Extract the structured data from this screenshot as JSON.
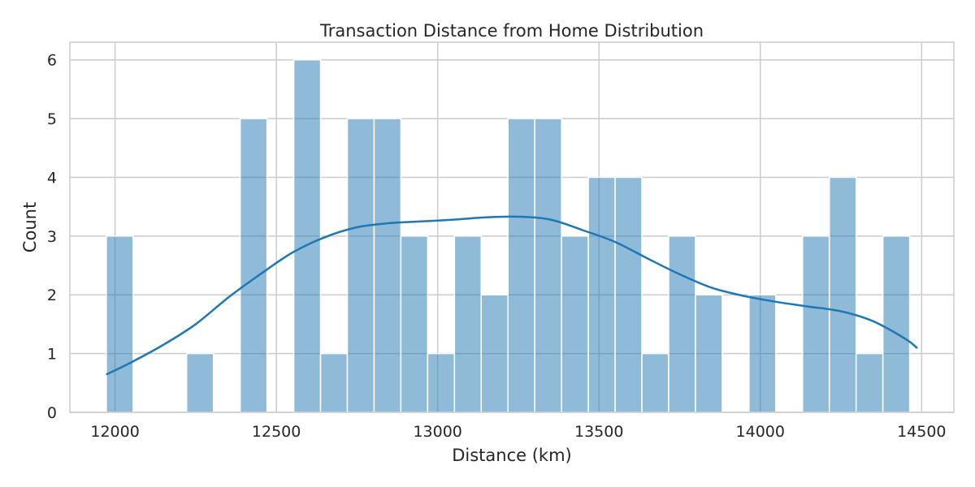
{
  "chart_data": {
    "type": "bar",
    "subtype": "histogram-with-kde",
    "title": "Transaction Distance from Home Distribution",
    "xlabel": "Distance (km)",
    "ylabel": "Count",
    "xlim": [
      11860,
      14600
    ],
    "ylim": [
      0,
      6.3
    ],
    "xticks": [
      12000,
      12500,
      13000,
      13500,
      14000,
      14500
    ],
    "yticks": [
      0,
      1,
      2,
      3,
      4,
      5,
      6
    ],
    "grid": true,
    "colors": {
      "bar_fill": "#1f77b4",
      "bar_fill_opacity": 0.5,
      "bar_edge": "#ffffff",
      "kde_line": "#1f77b4",
      "grid": "#cccccc",
      "frame": "#cccccc"
    },
    "bins": {
      "start": 11973,
      "width": 83,
      "counts": [
        3,
        0,
        0,
        1,
        0,
        5,
        0,
        6,
        1,
        5,
        5,
        3,
        1,
        3,
        2,
        5,
        5,
        3,
        4,
        4,
        1,
        3,
        2,
        0,
        2,
        0,
        3,
        4,
        1,
        3
      ]
    },
    "kde": {
      "x": [
        11975,
        12050,
        12150,
        12250,
        12350,
        12450,
        12550,
        12650,
        12750,
        12850,
        12950,
        13050,
        13150,
        13250,
        13350,
        13450,
        13550,
        13650,
        13750,
        13850,
        13950,
        14050,
        14150,
        14250,
        14350,
        14450,
        14485
      ],
      "y": [
        0.65,
        0.85,
        1.15,
        1.5,
        1.95,
        2.35,
        2.72,
        2.98,
        3.15,
        3.22,
        3.25,
        3.28,
        3.32,
        3.33,
        3.28,
        3.1,
        2.9,
        2.62,
        2.35,
        2.12,
        1.98,
        1.88,
        1.8,
        1.72,
        1.55,
        1.25,
        1.1
      ]
    }
  }
}
